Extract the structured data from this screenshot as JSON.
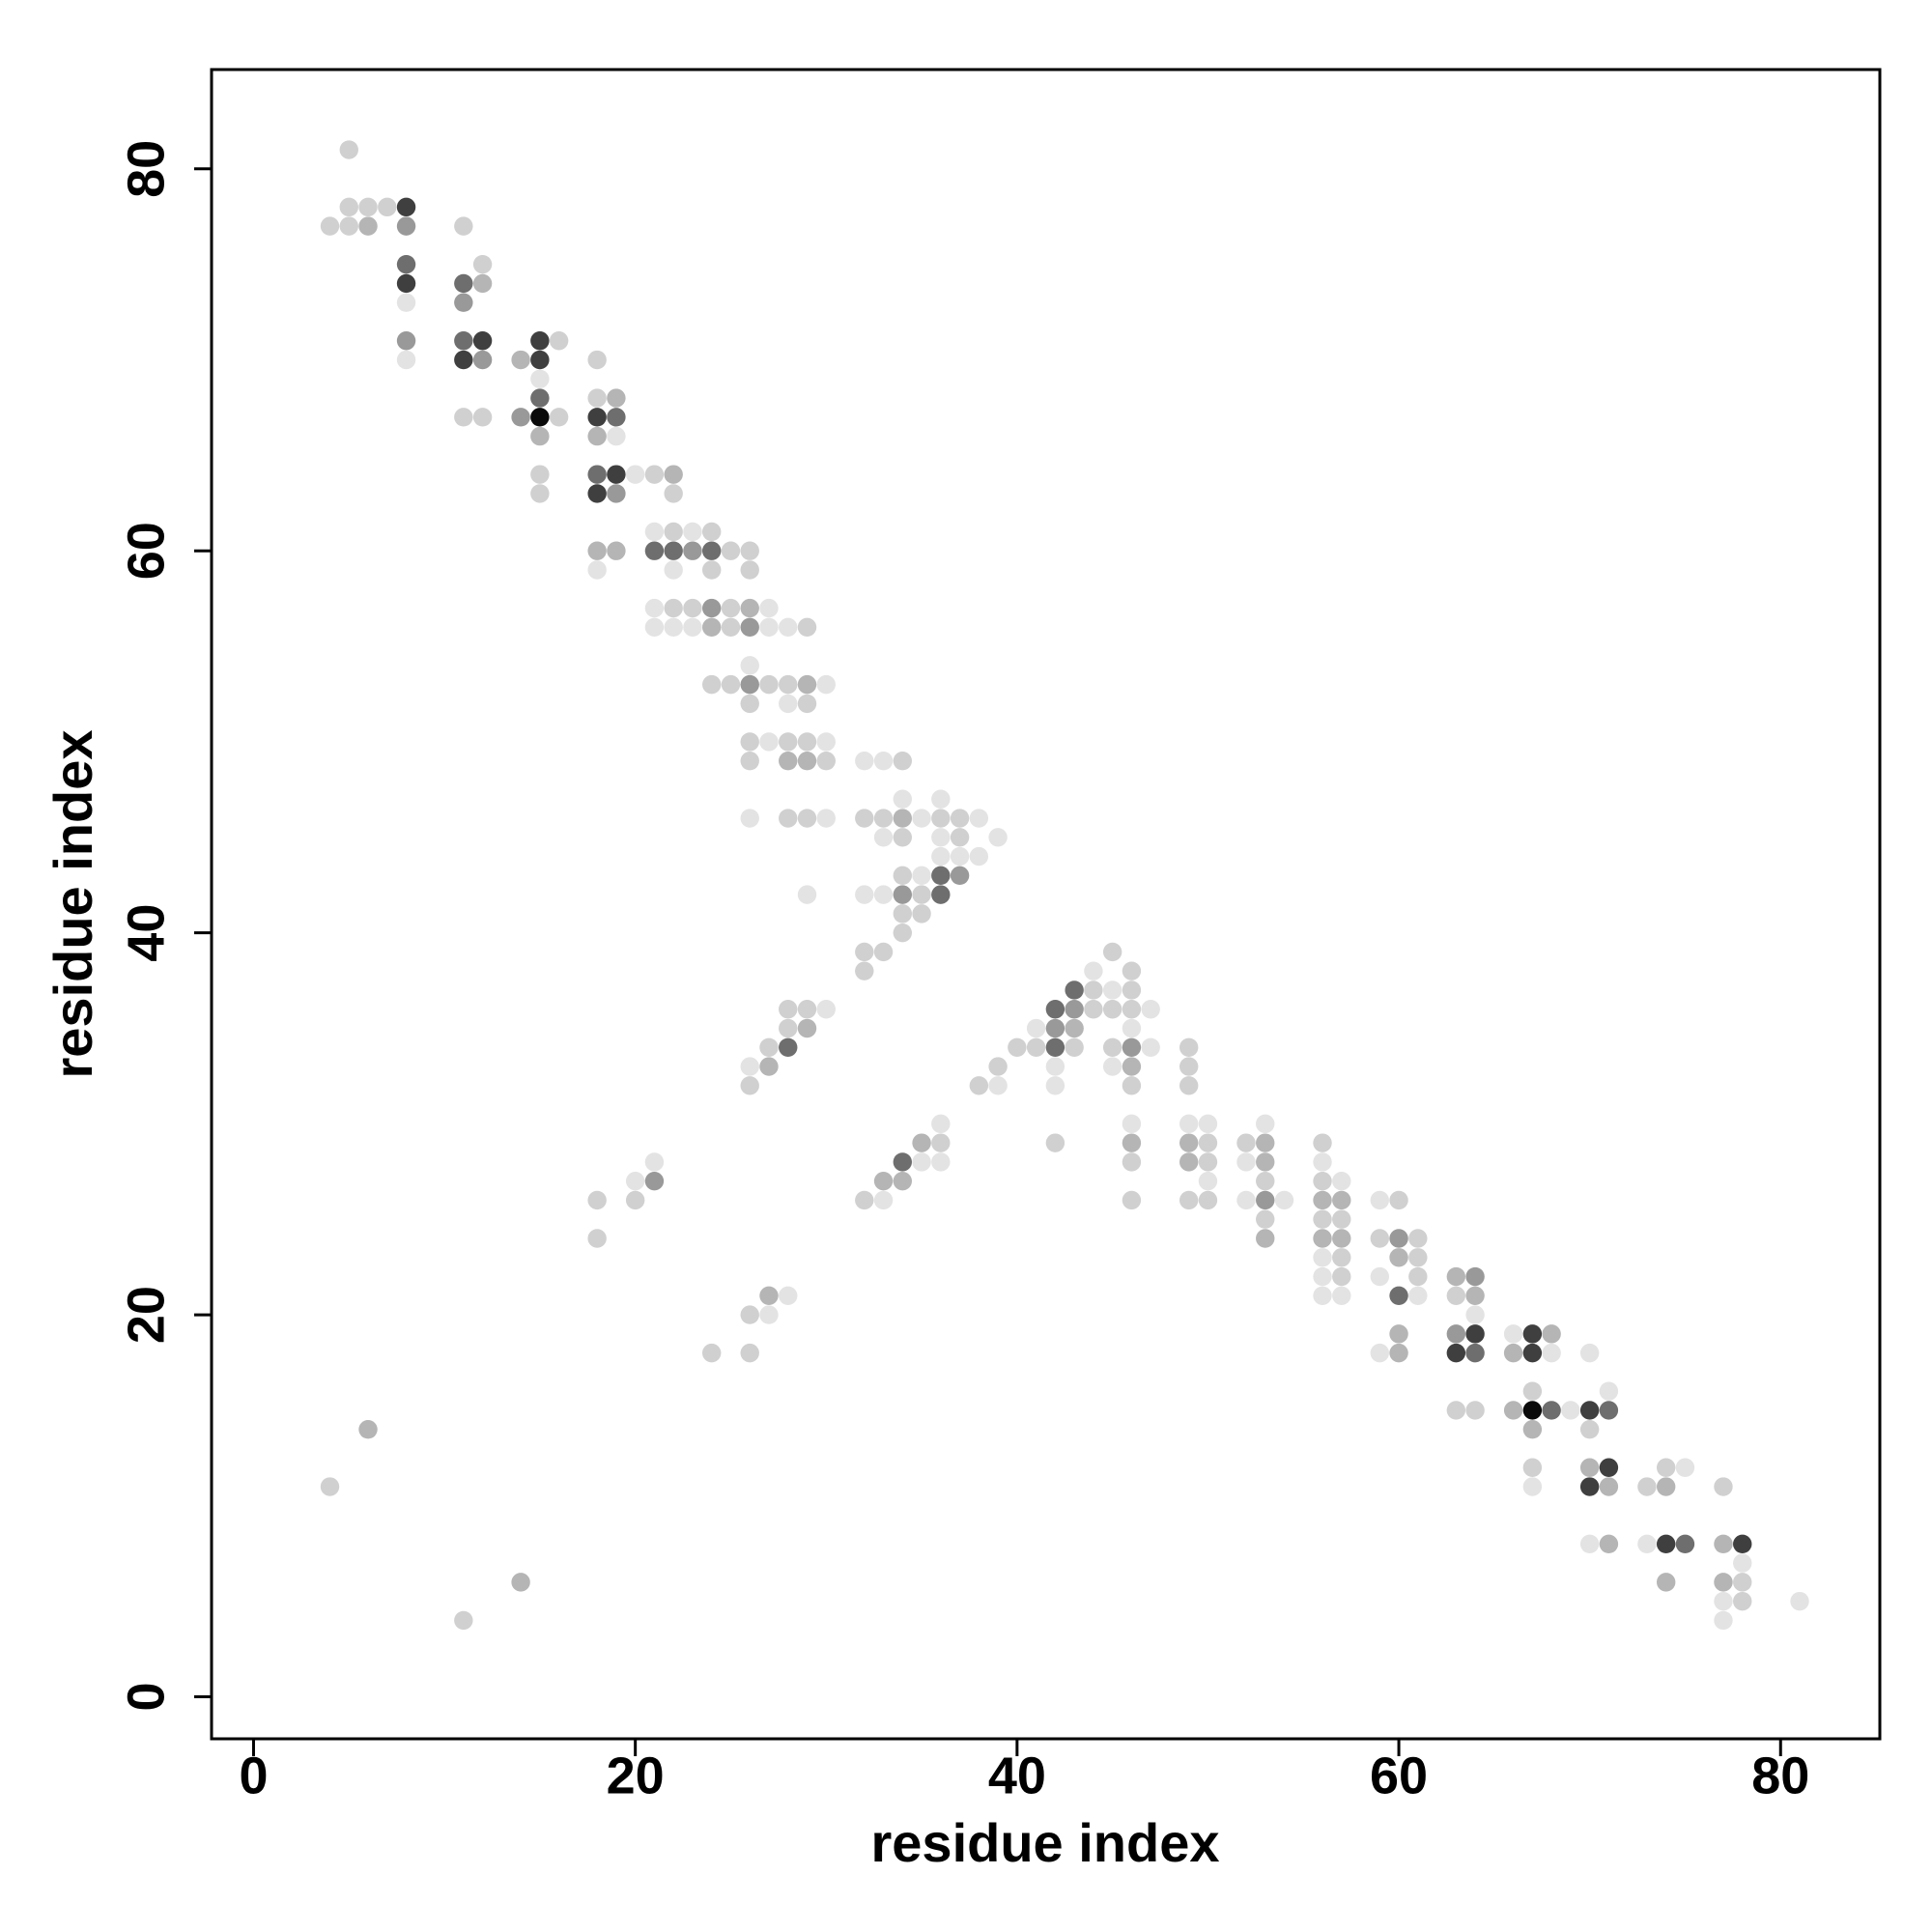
{
  "chart_data": {
    "type": "scatter",
    "xlabel": "residue index",
    "ylabel": "residue index",
    "xlim": [
      -2.2,
      85.2
    ],
    "ylim": [
      -2.2,
      85.2
    ],
    "xticks": [
      0,
      20,
      40,
      60,
      80
    ],
    "yticks": [
      0,
      20,
      40,
      60,
      80
    ],
    "series": [
      {
        "color": "#e3e3e3",
        "x": [
          8,
          8,
          15,
          19,
          20,
          21,
          23,
          18,
          22,
          21,
          27,
          21,
          22,
          23,
          27,
          28,
          26,
          30,
          28,
          27,
          30,
          32,
          33,
          34,
          36,
          26,
          30,
          35,
          38,
          33,
          36,
          39,
          36,
          37,
          38,
          35,
          29,
          32,
          33,
          44,
          45,
          30,
          47,
          41,
          46,
          47,
          26,
          42,
          45,
          39,
          42,
          36,
          46,
          49,
          50,
          53,
          21,
          35,
          36,
          52,
          56,
          20,
          50,
          57,
          33,
          52,
          54,
          59,
          56,
          56,
          59,
          28,
          56,
          57,
          61,
          27,
          64,
          66,
          59,
          68,
          70,
          71,
          69,
          75,
          67,
          70,
          73,
          78,
          77,
          81,
          77
        ],
        "values": [
          73,
          70,
          69,
          66,
          64,
          61,
          61,
          59,
          59,
          57,
          57,
          56,
          56,
          56,
          56,
          56,
          54,
          53,
          52,
          50,
          50,
          49,
          49,
          47,
          47,
          46,
          46,
          46,
          46,
          45,
          45,
          45,
          44,
          44,
          44,
          43,
          42,
          42,
          42,
          38,
          37,
          36,
          36,
          35,
          35,
          34,
          33,
          33,
          33,
          32,
          32,
          30,
          30,
          30,
          30,
          30,
          28,
          28,
          28,
          28,
          28,
          27,
          27,
          27,
          26,
          26,
          26,
          26,
          23,
          22,
          22,
          21,
          21,
          21,
          21,
          20,
          20,
          19,
          18,
          18,
          18,
          16,
          15,
          12,
          11,
          8,
          8,
          7,
          5,
          5,
          4
        ]
      },
      {
        "color": "#d0d0d0",
        "x": [
          5,
          5,
          6,
          7,
          4,
          5,
          11,
          12,
          16,
          18,
          18,
          11,
          12,
          16,
          15,
          21,
          15,
          22,
          22,
          24,
          25,
          26,
          24,
          26,
          22,
          23,
          25,
          25,
          29,
          24,
          25,
          27,
          28,
          26,
          29,
          26,
          28,
          29,
          26,
          30,
          34,
          28,
          29,
          32,
          33,
          36,
          37,
          34,
          37,
          34,
          35,
          34,
          35,
          34,
          32,
          33,
          45,
          32,
          46,
          44,
          46,
          28,
          29,
          44,
          45,
          46,
          28,
          27,
          40,
          41,
          43,
          45,
          49,
          39,
          49,
          26,
          38,
          46,
          49,
          36,
          42,
          50,
          52,
          56,
          46,
          50,
          53,
          56,
          18,
          20,
          32,
          46,
          49,
          50,
          60,
          53,
          56,
          57,
          18,
          59,
          61,
          57,
          61,
          57,
          61,
          63,
          26,
          24,
          26,
          67,
          63,
          64,
          70,
          67,
          74,
          4,
          73,
          77,
          78,
          78,
          11
        ],
        "values": [
          81,
          78,
          78,
          78,
          77,
          77,
          77,
          75,
          71,
          70,
          68,
          67,
          67,
          67,
          64,
          64,
          63,
          63,
          61,
          61,
          60,
          60,
          59,
          59,
          57,
          57,
          57,
          56,
          56,
          53,
          53,
          53,
          53,
          52,
          52,
          50,
          50,
          50,
          49,
          49,
          49,
          46,
          46,
          46,
          46,
          46,
          46,
          45,
          45,
          43,
          42,
          41,
          41,
          40,
          39,
          39,
          39,
          38,
          38,
          37,
          37,
          36,
          36,
          36,
          36,
          36,
          35,
          34,
          34,
          34,
          34,
          34,
          34,
          33,
          33,
          32,
          32,
          32,
          32,
          29,
          29,
          29,
          29,
          29,
          28,
          28,
          27,
          27,
          26,
          26,
          26,
          26,
          26,
          26,
          26,
          25,
          25,
          25,
          24,
          24,
          24,
          23,
          23,
          22,
          22,
          21,
          20,
          18,
          18,
          16,
          15,
          15,
          14,
          12,
          12,
          11,
          11,
          11,
          6,
          5,
          4
        ]
      },
      {
        "color": "#b5b5b5",
        "x": [
          6,
          12,
          14,
          19,
          15,
          18,
          22,
          18,
          19,
          26,
          28,
          29,
          34,
          43,
          29,
          27,
          46,
          35,
          46,
          49,
          53,
          49,
          53,
          33,
          34,
          56,
          57,
          53,
          56,
          57,
          60,
          63,
          27,
          64,
          60,
          68,
          60,
          66,
          66,
          6,
          67,
          70,
          71,
          74,
          71,
          77,
          14,
          74,
          77,
          24,
          29
        ],
        "values": [
          77,
          74,
          70,
          68,
          66,
          66,
          64,
          60,
          60,
          57,
          49,
          49,
          46,
          35,
          35,
          33,
          33,
          29,
          29,
          29,
          29,
          28,
          28,
          27,
          27,
          26,
          26,
          24,
          24,
          24,
          23,
          22,
          21,
          21,
          19,
          19,
          18,
          18,
          15,
          14,
          14,
          12,
          11,
          11,
          8,
          8,
          6,
          6,
          6,
          56,
          53
        ]
      },
      {
        "color": "#999999",
        "x": [
          8,
          11,
          8,
          12,
          14,
          19,
          23,
          24,
          26,
          26,
          37,
          34,
          42,
          43,
          46,
          21,
          53,
          60,
          64,
          63
        ],
        "values": [
          77,
          73,
          71,
          70,
          67,
          63,
          60,
          57,
          56,
          53,
          43,
          42,
          35,
          36,
          34,
          27,
          26,
          24,
          22,
          19
        ]
      },
      {
        "color": "#6e6e6e",
        "x": [
          8,
          11,
          11,
          15,
          19,
          18,
          21,
          22,
          24,
          36,
          36,
          42,
          43,
          42,
          28,
          34,
          60,
          64,
          68,
          71,
          75
        ],
        "values": [
          75,
          74,
          71,
          68,
          67,
          64,
          60,
          60,
          60,
          43,
          42,
          36,
          37,
          34,
          34,
          28,
          21,
          18,
          15,
          15,
          8
        ]
      },
      {
        "color": "#3f3f3f",
        "x": [
          8,
          8,
          12,
          15,
          11,
          15,
          18,
          19,
          18,
          64,
          67,
          63,
          67,
          70,
          71,
          70,
          74,
          78
        ],
        "values": [
          78,
          74,
          71,
          71,
          70,
          70,
          67,
          64,
          63,
          19,
          19,
          18,
          18,
          15,
          12,
          11,
          8,
          8
        ]
      },
      {
        "color": "#0a0a0a",
        "x": [
          15,
          67
        ],
        "values": [
          67,
          15
        ]
      }
    ]
  }
}
